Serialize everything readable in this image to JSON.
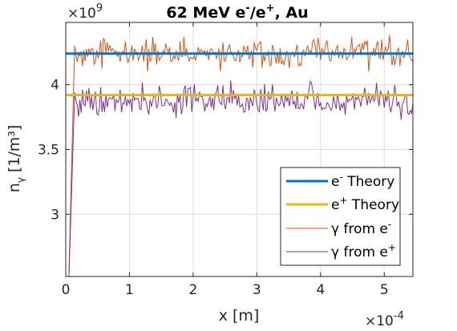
{
  "chart_data": {
    "type": "line",
    "title_parts": {
      "a": "62 MeV e",
      "b": "-",
      "c": "/e",
      "d": "+",
      "e": ", Au"
    },
    "xlabel": "x [m]",
    "ylabel_parts": {
      "n": "n",
      "gamma": "γ",
      "unit": "[1/m³]"
    },
    "x_multiplier": {
      "base": "×10",
      "exp": "-4"
    },
    "y_multiplier": {
      "base": "×10",
      "exp": "9"
    },
    "xlim": [
      0,
      5.45
    ],
    "ylim": [
      2.52,
      4.48
    ],
    "x_ticks": [
      0,
      1,
      2,
      3,
      4,
      5
    ],
    "x_tick_labels": [
      "0",
      "1",
      "2",
      "3",
      "4",
      "5"
    ],
    "y_ticks": [
      3.0,
      3.5,
      4.0
    ],
    "y_tick_labels": [
      "3",
      "3.5",
      "4"
    ],
    "grid": true,
    "legend_position": "bottom-right",
    "legend": [
      {
        "base": "e",
        "sup": "-",
        "rest": " Theory"
      },
      {
        "base": "e",
        "sup": "+",
        "rest": " Theory"
      },
      {
        "base": "γ from e",
        "sup": "-",
        "rest": ""
      },
      {
        "base": "γ from e",
        "sup": "+",
        "rest": ""
      }
    ],
    "series": [
      {
        "name": "e- Theory",
        "color": "#0072BD",
        "kind": "constant",
        "y": 4.24
      },
      {
        "name": "e+ Theory",
        "color": "#EDB120",
        "kind": "constant",
        "y": 3.92
      },
      {
        "name": "γ from e-",
        "color": "#D95319",
        "kind": "noisy",
        "start_y": 2.55,
        "mean": 4.24,
        "amplitude": 0.06
      },
      {
        "name": "γ from e+",
        "color": "#7E2F8E",
        "kind": "noisy",
        "start_y": 2.52,
        "mean": 3.88,
        "amplitude": 0.06
      }
    ]
  }
}
